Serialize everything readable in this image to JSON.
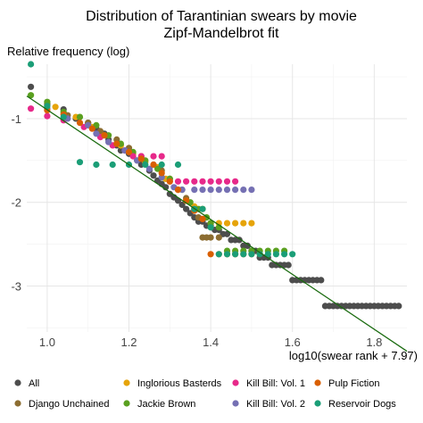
{
  "chart_data": {
    "type": "scatter",
    "title": "Distribution of Tarantinian swears by movie",
    "subtitle": "Zipf-Mandelbrot fit",
    "xlabel": "log10(swear rank + 7.97)",
    "ylabel": "Relative frequency (log)",
    "xlim": [
      0.95,
      1.88
    ],
    "ylim": [
      -3.55,
      -0.35
    ],
    "x_ticks": [
      1.0,
      1.2,
      1.4,
      1.6,
      1.8
    ],
    "x_tick_labels": [
      "1.0",
      "1.2",
      "1.4",
      "1.6",
      "1.8"
    ],
    "y_ticks": [
      -1,
      -2,
      -3
    ],
    "y_tick_labels": [
      "-1",
      "-2",
      "-3"
    ],
    "grid": true,
    "legend_position": "bottom",
    "fit_line": {
      "name": "Zipf-Mandelbrot fit",
      "color": "#1a6b0f",
      "x": [
        0.95,
        1.88
      ],
      "y": [
        -0.73,
        -3.78
      ]
    },
    "series": [
      {
        "name": "All",
        "color": "#4d4d4d",
        "x": [
          0.96,
          1.0,
          1.04,
          1.07,
          1.1,
          1.12,
          1.14,
          1.15,
          1.17,
          1.18,
          1.2,
          1.22,
          1.23,
          1.25,
          1.26,
          1.27,
          1.28,
          1.29,
          1.3,
          1.31,
          1.32,
          1.33,
          1.34,
          1.35,
          1.36,
          1.37,
          1.38,
          1.39,
          1.4,
          1.41,
          1.42,
          1.43,
          1.44,
          1.45,
          1.46,
          1.47,
          1.48,
          1.49,
          1.5,
          1.51,
          1.52,
          1.53,
          1.54,
          1.55,
          1.56,
          1.57,
          1.58,
          1.59,
          1.6,
          1.61,
          1.62,
          1.63,
          1.64,
          1.65,
          1.66,
          1.67,
          1.68,
          1.69,
          1.7,
          1.71,
          1.72,
          1.73,
          1.74,
          1.75,
          1.76,
          1.77,
          1.78,
          1.79,
          1.8,
          1.81,
          1.82,
          1.83,
          1.84,
          1.85,
          1.86
        ],
        "y": [
          -0.62,
          -0.82,
          -0.89,
          -1.0,
          -1.05,
          -1.12,
          -1.18,
          -1.25,
          -1.32,
          -1.38,
          -1.42,
          -1.5,
          -1.55,
          -1.62,
          -1.68,
          -1.74,
          -1.78,
          -1.82,
          -1.9,
          -1.94,
          -1.98,
          -2.03,
          -2.08,
          -2.13,
          -2.18,
          -2.23,
          -2.23,
          -2.28,
          -2.28,
          -2.33,
          -2.33,
          -2.38,
          -2.38,
          -2.45,
          -2.45,
          -2.45,
          -2.52,
          -2.52,
          -2.58,
          -2.58,
          -2.66,
          -2.66,
          -2.66,
          -2.75,
          -2.75,
          -2.75,
          -2.75,
          -2.75,
          -2.93,
          -2.93,
          -2.93,
          -2.93,
          -2.93,
          -2.93,
          -2.93,
          -2.93,
          -3.24,
          -3.24,
          -3.24,
          -3.24,
          -3.24,
          -3.24,
          -3.24,
          -3.24,
          -3.24,
          -3.24,
          -3.24,
          -3.24,
          -3.24,
          -3.24,
          -3.24,
          -3.24,
          -3.24,
          -3.24,
          -3.24
        ]
      },
      {
        "name": "Django Unchained",
        "color": "#8c6d31",
        "x": [
          1.0,
          1.05,
          1.1,
          1.13,
          1.17,
          1.2,
          1.23,
          1.26,
          1.28,
          1.3,
          1.32,
          1.34,
          1.36,
          1.37,
          1.38,
          1.39,
          1.4,
          1.42
        ],
        "y": [
          -0.84,
          -0.96,
          -1.05,
          -1.15,
          -1.25,
          -1.35,
          -1.45,
          -1.55,
          -1.62,
          -1.72,
          -1.85,
          -1.95,
          -2.08,
          -2.18,
          -2.42,
          -2.42,
          -2.42,
          -2.42
        ]
      },
      {
        "name": "Inglorious Basterds",
        "color": "#e6a40a",
        "x": [
          1.02,
          1.07,
          1.11,
          1.14,
          1.18,
          1.21,
          1.24,
          1.27,
          1.29,
          1.32,
          1.34,
          1.36,
          1.38,
          1.4,
          1.42,
          1.44,
          1.46,
          1.48,
          1.5
        ],
        "y": [
          -0.86,
          -0.98,
          -1.1,
          -1.2,
          -1.32,
          -1.42,
          -1.52,
          -1.58,
          -1.72,
          -1.85,
          -1.98,
          -2.05,
          -2.08,
          -2.25,
          -2.25,
          -2.25,
          -2.25,
          -2.25,
          -2.25
        ]
      },
      {
        "name": "Jackie Brown",
        "color": "#5aa020",
        "x": [
          0.96,
          1.0,
          1.04,
          1.08,
          1.12,
          1.15,
          1.18,
          1.21,
          1.24,
          1.27,
          1.3,
          1.33,
          1.35,
          1.37,
          1.39,
          1.4,
          1.42,
          1.44,
          1.46,
          1.48,
          1.5,
          1.52,
          1.54,
          1.56,
          1.58
        ],
        "y": [
          -0.72,
          -0.8,
          -0.92,
          -0.98,
          -1.08,
          -1.2,
          -1.3,
          -1.4,
          -1.5,
          -1.6,
          -1.72,
          -1.85,
          -2.0,
          -2.08,
          -2.18,
          -2.25,
          -2.3,
          -2.58,
          -2.58,
          -2.58,
          -2.58,
          -2.58,
          -2.58,
          -2.58,
          -2.58
        ]
      },
      {
        "name": "Kill Bill: Vol. 1",
        "color": "#e7298a",
        "x": [
          0.96,
          1.0,
          1.04,
          1.09,
          1.13,
          1.16,
          1.19,
          1.21,
          1.23,
          1.26,
          1.28,
          1.3,
          1.32,
          1.34,
          1.36,
          1.38,
          1.4,
          1.42,
          1.44,
          1.46
        ],
        "y": [
          -0.88,
          -0.97,
          -1.02,
          -1.1,
          -1.22,
          -1.32,
          -1.38,
          -1.45,
          -1.45,
          -1.45,
          -1.45,
          -1.75,
          -1.75,
          -1.75,
          -1.75,
          -1.75,
          -1.75,
          -1.75,
          -1.75,
          -1.75
        ]
      },
      {
        "name": "Kill Bill: Vol. 2",
        "color": "#7570b3",
        "x": [
          1.0,
          1.05,
          1.1,
          1.12,
          1.15,
          1.19,
          1.22,
          1.25,
          1.28,
          1.31,
          1.33,
          1.36,
          1.38,
          1.4,
          1.42,
          1.44,
          1.46,
          1.48,
          1.5
        ],
        "y": [
          -0.88,
          -1.0,
          -1.08,
          -1.18,
          -1.28,
          -1.38,
          -1.5,
          -1.6,
          -1.7,
          -1.82,
          -1.85,
          -1.85,
          -1.85,
          -1.85,
          -1.85,
          -1.85,
          -1.85,
          -1.85,
          -1.85
        ]
      },
      {
        "name": "Pulp Fiction",
        "color": "#d95f02",
        "x": [
          1.0,
          1.04,
          1.08,
          1.11,
          1.14,
          1.17,
          1.2,
          1.23,
          1.26,
          1.28,
          1.3,
          1.32,
          1.34,
          1.36,
          1.38,
          1.4,
          1.42,
          1.44,
          1.46,
          1.48,
          1.5,
          1.52
        ],
        "y": [
          -0.9,
          -0.95,
          -1.05,
          -1.12,
          -1.2,
          -1.3,
          -1.4,
          -1.48,
          -1.55,
          -1.65,
          -1.75,
          -1.85,
          -1.98,
          -2.1,
          -2.2,
          -2.62,
          -2.62,
          -2.62,
          -2.62,
          -2.62,
          -2.62,
          -2.62
        ]
      },
      {
        "name": "Reservoir Dogs",
        "color": "#1b9e77",
        "x": [
          0.96,
          1.0,
          1.04,
          1.08,
          1.12,
          1.16,
          1.2,
          1.24,
          1.28,
          1.32,
          1.36,
          1.38,
          1.4,
          1.42,
          1.44,
          1.46,
          1.48,
          1.5,
          1.52,
          1.54,
          1.56,
          1.58,
          1.6
        ],
        "y": [
          -0.35,
          -0.85,
          -0.98,
          -1.52,
          -1.55,
          -1.55,
          -1.55,
          -1.55,
          -1.55,
          -1.55,
          -2.08,
          -2.08,
          -2.3,
          -2.62,
          -2.62,
          -2.62,
          -2.62,
          -2.62,
          -2.62,
          -2.62,
          -2.62,
          -2.62,
          -2.62
        ]
      }
    ]
  }
}
